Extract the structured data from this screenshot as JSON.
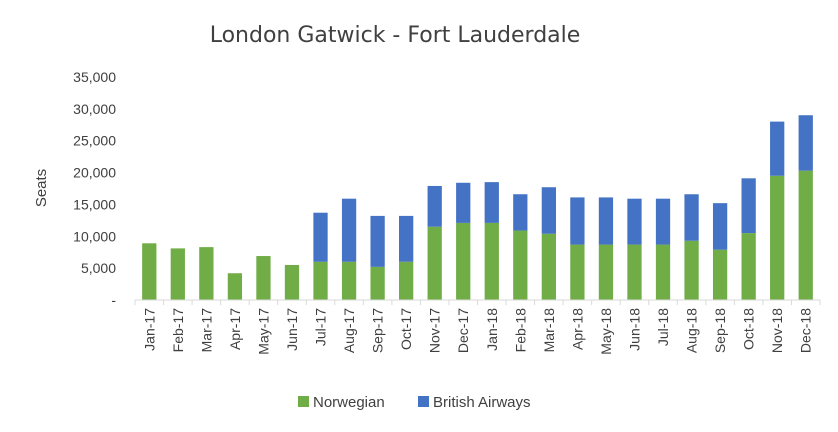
{
  "chart_data": {
    "type": "bar",
    "stacked": true,
    "title": "London Gatwick - Fort Lauderdale",
    "xlabel": "",
    "ylabel": "Seats",
    "ylim": [
      0,
      35000
    ],
    "yticks": [
      0,
      5000,
      10000,
      15000,
      20000,
      25000,
      30000,
      35000
    ],
    "ytick_labels": [
      "-",
      "5,000",
      "10,000",
      "15,000",
      "20,000",
      "25,000",
      "30,000",
      "35,000"
    ],
    "grid": false,
    "legend_position": "bottom",
    "categories": [
      "Jan-17",
      "Feb-17",
      "Mar-17",
      "Apr-17",
      "May-17",
      "Jun-17",
      "Jul-17",
      "Aug-17",
      "Sep-17",
      "Oct-17",
      "Nov-17",
      "Dec-17",
      "Jan-18",
      "Feb-18",
      "Mar-18",
      "Apr-18",
      "May-18",
      "Jun-18",
      "Jul-18",
      "Aug-18",
      "Sep-18",
      "Oct-18",
      "Nov-18",
      "Dec-18"
    ],
    "series": [
      {
        "name": "Norwegian",
        "color": "#70AD47",
        "values": [
          8900,
          8100,
          8300,
          4200,
          6900,
          5500,
          6000,
          6000,
          5200,
          6000,
          11500,
          12100,
          12100,
          10900,
          10400,
          8700,
          8700,
          8700,
          8700,
          9300,
          7900,
          10500,
          19500,
          20300
        ]
      },
      {
        "name": "British Airways",
        "color": "#4472C4",
        "values": [
          0,
          0,
          0,
          0,
          0,
          0,
          7700,
          9900,
          8000,
          7200,
          6400,
          6300,
          6400,
          5700,
          7300,
          7400,
          7400,
          7200,
          7200,
          7300,
          7300,
          8600,
          8500,
          8700
        ]
      }
    ]
  }
}
